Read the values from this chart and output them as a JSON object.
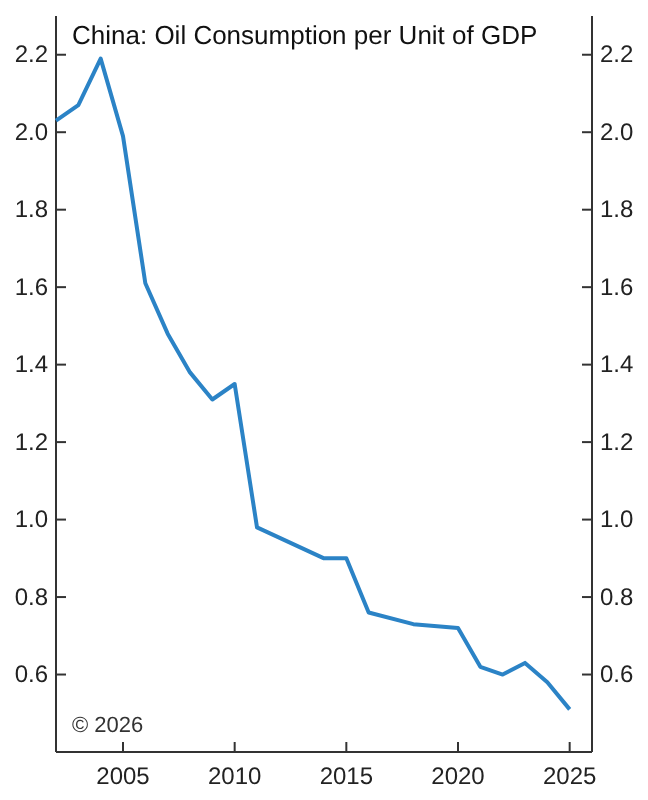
{
  "chart_data": {
    "type": "line",
    "title": "China: Oil Consumption per Unit of GDP",
    "x": [
      2002,
      2003,
      2004,
      2005,
      2006,
      2007,
      2008,
      2009,
      2010,
      2011,
      2014,
      2015,
      2016,
      2018,
      2020,
      2021,
      2022,
      2023,
      2024,
      2025
    ],
    "series": [
      {
        "color": "#2b83c6",
        "values": [
          2.03,
          2.07,
          2.19,
          1.99,
          1.61,
          1.48,
          1.38,
          1.31,
          1.35,
          0.98,
          0.9,
          0.9,
          0.76,
          0.73,
          0.72,
          0.62,
          0.6,
          0.63,
          0.58,
          0.51
        ]
      }
    ],
    "xlim": [
      2002,
      2026
    ],
    "xticks": [
      2005,
      2010,
      2015,
      2020,
      2025
    ],
    "ylim": [
      0.4,
      2.3
    ],
    "yticks": [
      {
        "value": 0.6,
        "label": "0.6"
      },
      {
        "value": 0.8,
        "label": "0.8"
      },
      {
        "value": 1.0,
        "label": "1.0"
      },
      {
        "value": 1.2,
        "label": "1.2"
      },
      {
        "value": 1.4,
        "label": "1.4"
      },
      {
        "value": 1.6,
        "label": "1.6"
      },
      {
        "value": 1.8,
        "label": "1.8"
      },
      {
        "value": 2.0,
        "label": "2.0"
      },
      {
        "value": 2.2,
        "label": "2.2"
      }
    ],
    "y2lim": [
      0.4,
      2.3
    ],
    "y2ticks": [
      {
        "value": 0.6,
        "label": "0.6"
      },
      {
        "value": 0.8,
        "label": "0.8"
      },
      {
        "value": 1.0,
        "label": "1.0"
      },
      {
        "value": 1.2,
        "label": "1.2"
      },
      {
        "value": 1.4,
        "label": "1.4"
      },
      {
        "value": 1.6,
        "label": "1.6"
      },
      {
        "value": 1.8,
        "label": "1.8"
      },
      {
        "value": 2.0,
        "label": "2.0"
      },
      {
        "value": 2.2,
        "label": "2.2"
      }
    ],
    "annotations": [
      "© 2026"
    ],
    "grid": false,
    "marker": "none",
    "line_style": "solid"
  }
}
